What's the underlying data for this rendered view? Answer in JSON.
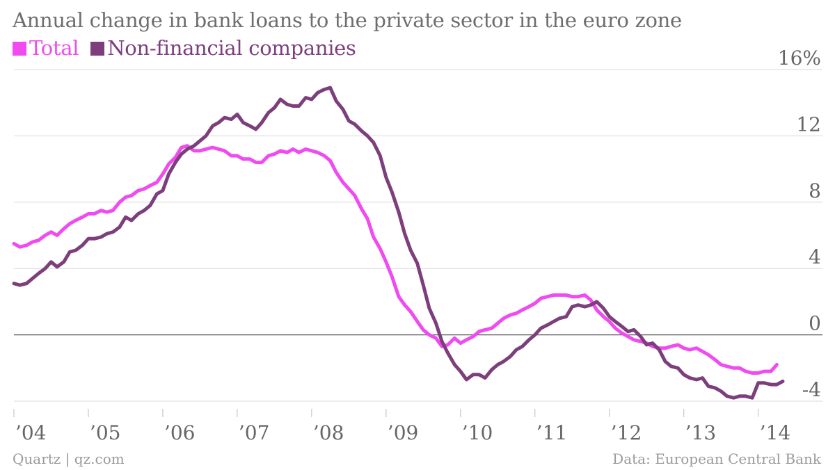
{
  "chart_data": {
    "type": "line",
    "title": "Annual change in bank loans to the private sector in the euro zone",
    "xlabel": "",
    "ylabel": "",
    "ylim": [
      -4,
      16
    ],
    "xlim": [
      2004.0,
      2014.33
    ],
    "yticks": [
      {
        "value": 16,
        "label": "16%"
      },
      {
        "value": 12,
        "label": "12"
      },
      {
        "value": 8,
        "label": "8"
      },
      {
        "value": 4,
        "label": "4"
      },
      {
        "value": 0,
        "label": "0"
      },
      {
        "value": -4,
        "label": "-4"
      }
    ],
    "xticks": [
      {
        "value": 2004,
        "label": "’04"
      },
      {
        "value": 2005,
        "label": "’05"
      },
      {
        "value": 2006,
        "label": "’06"
      },
      {
        "value": 2007,
        "label": "’07"
      },
      {
        "value": 2008,
        "label": "’08"
      },
      {
        "value": 2009,
        "label": "’09"
      },
      {
        "value": 2010,
        "label": "’10"
      },
      {
        "value": 2011,
        "label": "’11"
      },
      {
        "value": 2012,
        "label": "’12"
      },
      {
        "value": 2013,
        "label": "’13"
      },
      {
        "value": 2014,
        "label": "’14"
      }
    ],
    "grid": true,
    "legend_position": "top-left",
    "series": [
      {
        "name": "Total",
        "color": "#f04bf0",
        "points": [
          [
            2004.0,
            5.5
          ],
          [
            2004.08,
            5.3
          ],
          [
            2004.17,
            5.4
          ],
          [
            2004.25,
            5.6
          ],
          [
            2004.33,
            5.7
          ],
          [
            2004.42,
            6.0
          ],
          [
            2004.5,
            6.2
          ],
          [
            2004.58,
            6.0
          ],
          [
            2004.67,
            6.4
          ],
          [
            2004.75,
            6.7
          ],
          [
            2004.83,
            6.9
          ],
          [
            2004.92,
            7.1
          ],
          [
            2005.0,
            7.3
          ],
          [
            2005.08,
            7.3
          ],
          [
            2005.17,
            7.5
          ],
          [
            2005.25,
            7.4
          ],
          [
            2005.33,
            7.5
          ],
          [
            2005.42,
            8.0
          ],
          [
            2005.5,
            8.3
          ],
          [
            2005.58,
            8.4
          ],
          [
            2005.67,
            8.7
          ],
          [
            2005.75,
            8.8
          ],
          [
            2005.83,
            9.0
          ],
          [
            2005.92,
            9.2
          ],
          [
            2006.0,
            9.7
          ],
          [
            2006.08,
            10.3
          ],
          [
            2006.17,
            10.7
          ],
          [
            2006.25,
            11.3
          ],
          [
            2006.33,
            11.4
          ],
          [
            2006.42,
            11.1
          ],
          [
            2006.5,
            11.1
          ],
          [
            2006.58,
            11.2
          ],
          [
            2006.67,
            11.3
          ],
          [
            2006.75,
            11.2
          ],
          [
            2006.83,
            11.1
          ],
          [
            2006.92,
            10.8
          ],
          [
            2007.0,
            10.8
          ],
          [
            2007.08,
            10.6
          ],
          [
            2007.17,
            10.6
          ],
          [
            2007.25,
            10.4
          ],
          [
            2007.33,
            10.4
          ],
          [
            2007.42,
            10.8
          ],
          [
            2007.5,
            10.9
          ],
          [
            2007.58,
            11.1
          ],
          [
            2007.67,
            11.0
          ],
          [
            2007.75,
            11.2
          ],
          [
            2007.83,
            11.0
          ],
          [
            2007.92,
            11.2
          ],
          [
            2008.0,
            11.1
          ],
          [
            2008.08,
            11.0
          ],
          [
            2008.17,
            10.8
          ],
          [
            2008.25,
            10.5
          ],
          [
            2008.33,
            9.8
          ],
          [
            2008.42,
            9.2
          ],
          [
            2008.5,
            8.8
          ],
          [
            2008.58,
            8.4
          ],
          [
            2008.67,
            7.6
          ],
          [
            2008.75,
            7.0
          ],
          [
            2008.83,
            5.9
          ],
          [
            2008.92,
            5.2
          ],
          [
            2009.0,
            4.4
          ],
          [
            2009.08,
            3.5
          ],
          [
            2009.17,
            2.3
          ],
          [
            2009.25,
            1.8
          ],
          [
            2009.33,
            1.4
          ],
          [
            2009.42,
            0.8
          ],
          [
            2009.5,
            0.3
          ],
          [
            2009.58,
            0.0
          ],
          [
            2009.67,
            -0.2
          ],
          [
            2009.75,
            -0.7
          ],
          [
            2009.83,
            -0.6
          ],
          [
            2009.92,
            -0.2
          ],
          [
            2010.0,
            -0.5
          ],
          [
            2010.08,
            -0.3
          ],
          [
            2010.17,
            -0.1
          ],
          [
            2010.25,
            0.2
          ],
          [
            2010.33,
            0.3
          ],
          [
            2010.42,
            0.4
          ],
          [
            2010.5,
            0.7
          ],
          [
            2010.58,
            1.0
          ],
          [
            2010.67,
            1.2
          ],
          [
            2010.75,
            1.3
          ],
          [
            2010.83,
            1.5
          ],
          [
            2010.92,
            1.7
          ],
          [
            2011.0,
            1.9
          ],
          [
            2011.08,
            2.2
          ],
          [
            2011.17,
            2.3
          ],
          [
            2011.25,
            2.4
          ],
          [
            2011.33,
            2.4
          ],
          [
            2011.42,
            2.4
          ],
          [
            2011.5,
            2.3
          ],
          [
            2011.58,
            2.3
          ],
          [
            2011.67,
            2.4
          ],
          [
            2011.75,
            2.1
          ],
          [
            2011.83,
            1.5
          ],
          [
            2011.92,
            1.1
          ],
          [
            2012.0,
            0.8
          ],
          [
            2012.08,
            0.4
          ],
          [
            2012.17,
            0.1
          ],
          [
            2012.25,
            -0.1
          ],
          [
            2012.33,
            -0.3
          ],
          [
            2012.42,
            -0.4
          ],
          [
            2012.5,
            -0.5
          ],
          [
            2012.58,
            -0.7
          ],
          [
            2012.67,
            -0.8
          ],
          [
            2012.75,
            -0.8
          ],
          [
            2012.83,
            -0.7
          ],
          [
            2012.92,
            -0.6
          ],
          [
            2013.0,
            -0.8
          ],
          [
            2013.08,
            -0.9
          ],
          [
            2013.17,
            -0.8
          ],
          [
            2013.25,
            -1.0
          ],
          [
            2013.33,
            -1.2
          ],
          [
            2013.42,
            -1.5
          ],
          [
            2013.5,
            -1.8
          ],
          [
            2013.58,
            -1.9
          ],
          [
            2013.67,
            -2.0
          ],
          [
            2013.75,
            -2.0
          ],
          [
            2013.83,
            -2.2
          ],
          [
            2013.92,
            -2.3
          ],
          [
            2014.0,
            -2.3
          ],
          [
            2014.08,
            -2.2
          ],
          [
            2014.17,
            -2.2
          ],
          [
            2014.25,
            -1.8
          ]
        ]
      },
      {
        "name": "Non-financial companies",
        "color": "#7c3f7c",
        "points": [
          [
            2004.0,
            3.1
          ],
          [
            2004.08,
            3.0
          ],
          [
            2004.17,
            3.1
          ],
          [
            2004.25,
            3.4
          ],
          [
            2004.33,
            3.7
          ],
          [
            2004.42,
            4.0
          ],
          [
            2004.5,
            4.4
          ],
          [
            2004.58,
            4.1
          ],
          [
            2004.67,
            4.4
          ],
          [
            2004.75,
            5.0
          ],
          [
            2004.83,
            5.1
          ],
          [
            2004.92,
            5.4
          ],
          [
            2005.0,
            5.8
          ],
          [
            2005.08,
            5.8
          ],
          [
            2005.17,
            5.9
          ],
          [
            2005.25,
            6.1
          ],
          [
            2005.33,
            6.2
          ],
          [
            2005.42,
            6.5
          ],
          [
            2005.5,
            7.1
          ],
          [
            2005.58,
            6.9
          ],
          [
            2005.67,
            7.3
          ],
          [
            2005.75,
            7.5
          ],
          [
            2005.83,
            7.8
          ],
          [
            2005.92,
            8.5
          ],
          [
            2006.0,
            8.7
          ],
          [
            2006.08,
            9.7
          ],
          [
            2006.17,
            10.4
          ],
          [
            2006.25,
            10.9
          ],
          [
            2006.33,
            11.2
          ],
          [
            2006.42,
            11.4
          ],
          [
            2006.5,
            11.7
          ],
          [
            2006.58,
            12.0
          ],
          [
            2006.67,
            12.6
          ],
          [
            2006.75,
            12.8
          ],
          [
            2006.83,
            13.1
          ],
          [
            2006.92,
            13.0
          ],
          [
            2007.0,
            13.3
          ],
          [
            2007.08,
            12.8
          ],
          [
            2007.17,
            12.6
          ],
          [
            2007.25,
            12.4
          ],
          [
            2007.33,
            12.8
          ],
          [
            2007.42,
            13.4
          ],
          [
            2007.5,
            13.7
          ],
          [
            2007.58,
            14.2
          ],
          [
            2007.67,
            13.9
          ],
          [
            2007.75,
            13.8
          ],
          [
            2007.83,
            13.8
          ],
          [
            2007.92,
            14.3
          ],
          [
            2008.0,
            14.2
          ],
          [
            2008.08,
            14.6
          ],
          [
            2008.17,
            14.8
          ],
          [
            2008.25,
            14.9
          ],
          [
            2008.33,
            14.1
          ],
          [
            2008.42,
            13.6
          ],
          [
            2008.5,
            12.9
          ],
          [
            2008.58,
            12.7
          ],
          [
            2008.67,
            12.3
          ],
          [
            2008.75,
            12.0
          ],
          [
            2008.83,
            11.6
          ],
          [
            2008.92,
            10.8
          ],
          [
            2009.0,
            9.5
          ],
          [
            2009.08,
            8.6
          ],
          [
            2009.17,
            7.4
          ],
          [
            2009.25,
            6.1
          ],
          [
            2009.33,
            5.1
          ],
          [
            2009.42,
            4.3
          ],
          [
            2009.5,
            3.0
          ],
          [
            2009.58,
            1.6
          ],
          [
            2009.67,
            0.7
          ],
          [
            2009.75,
            -0.4
          ],
          [
            2009.83,
            -1.1
          ],
          [
            2009.92,
            -1.8
          ],
          [
            2010.0,
            -2.2
          ],
          [
            2010.08,
            -2.7
          ],
          [
            2010.17,
            -2.4
          ],
          [
            2010.25,
            -2.4
          ],
          [
            2010.33,
            -2.6
          ],
          [
            2010.42,
            -2.1
          ],
          [
            2010.5,
            -1.8
          ],
          [
            2010.58,
            -1.6
          ],
          [
            2010.67,
            -1.3
          ],
          [
            2010.75,
            -0.9
          ],
          [
            2010.83,
            -0.7
          ],
          [
            2010.92,
            -0.3
          ],
          [
            2011.0,
            0.0
          ],
          [
            2011.08,
            0.4
          ],
          [
            2011.17,
            0.6
          ],
          [
            2011.25,
            0.8
          ],
          [
            2011.33,
            1.0
          ],
          [
            2011.42,
            1.1
          ],
          [
            2011.5,
            1.7
          ],
          [
            2011.58,
            1.8
          ],
          [
            2011.67,
            1.7
          ],
          [
            2011.75,
            1.8
          ],
          [
            2011.83,
            2.0
          ],
          [
            2011.92,
            1.6
          ],
          [
            2012.0,
            1.1
          ],
          [
            2012.08,
            0.8
          ],
          [
            2012.17,
            0.5
          ],
          [
            2012.25,
            0.2
          ],
          [
            2012.33,
            0.3
          ],
          [
            2012.42,
            -0.1
          ],
          [
            2012.5,
            -0.6
          ],
          [
            2012.58,
            -0.5
          ],
          [
            2012.67,
            -0.9
          ],
          [
            2012.75,
            -1.6
          ],
          [
            2012.83,
            -1.9
          ],
          [
            2012.92,
            -2.0
          ],
          [
            2013.0,
            -2.4
          ],
          [
            2013.08,
            -2.6
          ],
          [
            2013.17,
            -2.7
          ],
          [
            2013.25,
            -2.6
          ],
          [
            2013.33,
            -3.1
          ],
          [
            2013.42,
            -3.2
          ],
          [
            2013.5,
            -3.4
          ],
          [
            2013.58,
            -3.7
          ],
          [
            2013.67,
            -3.8
          ],
          [
            2013.75,
            -3.7
          ],
          [
            2013.83,
            -3.7
          ],
          [
            2013.92,
            -3.8
          ],
          [
            2014.0,
            -2.9
          ],
          [
            2014.08,
            -2.9
          ],
          [
            2014.17,
            -3.0
          ],
          [
            2014.25,
            -3.0
          ],
          [
            2014.33,
            -2.8
          ]
        ]
      }
    ]
  },
  "footer": {
    "source_left": "Quartz | qz.com",
    "source_right": "Data: European Central Bank"
  },
  "colors": {
    "background": "#ffffff",
    "grid": "#d8d8d8",
    "zero_line": "#555555"
  }
}
